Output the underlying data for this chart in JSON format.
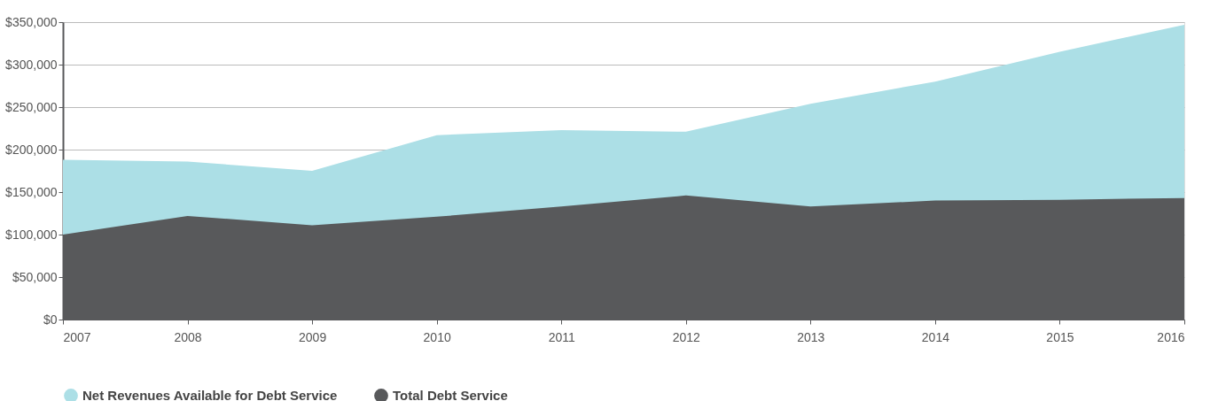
{
  "chart_data": {
    "type": "area",
    "categories": [
      "2007",
      "2008",
      "2009",
      "2010",
      "2011",
      "2012",
      "2013",
      "2014",
      "2015",
      "2016"
    ],
    "series": [
      {
        "name": "Net Revenues Available for Debt Service",
        "color": "#acdfe6",
        "values": [
          188000,
          186000,
          175000,
          217000,
          223000,
          221000,
          254000,
          280000,
          315000,
          347000
        ]
      },
      {
        "name": "Total Debt Service",
        "color": "#58595b",
        "values": [
          100000,
          122000,
          111000,
          121000,
          133000,
          146000,
          133000,
          140000,
          141000,
          143000
        ]
      }
    ],
    "ylim": [
      0,
      350000
    ],
    "yticks": [
      {
        "value": 0,
        "label": "$0"
      },
      {
        "value": 50000,
        "label": "$50,000"
      },
      {
        "value": 100000,
        "label": "$100,000"
      },
      {
        "value": 150000,
        "label": "$150,000"
      },
      {
        "value": 200000,
        "label": "$200,000"
      },
      {
        "value": 250000,
        "label": "$250,000"
      },
      {
        "value": 300000,
        "label": "$300,000"
      },
      {
        "value": 350000,
        "label": "$350,000"
      }
    ],
    "grid": "y",
    "legend": "bottom"
  }
}
